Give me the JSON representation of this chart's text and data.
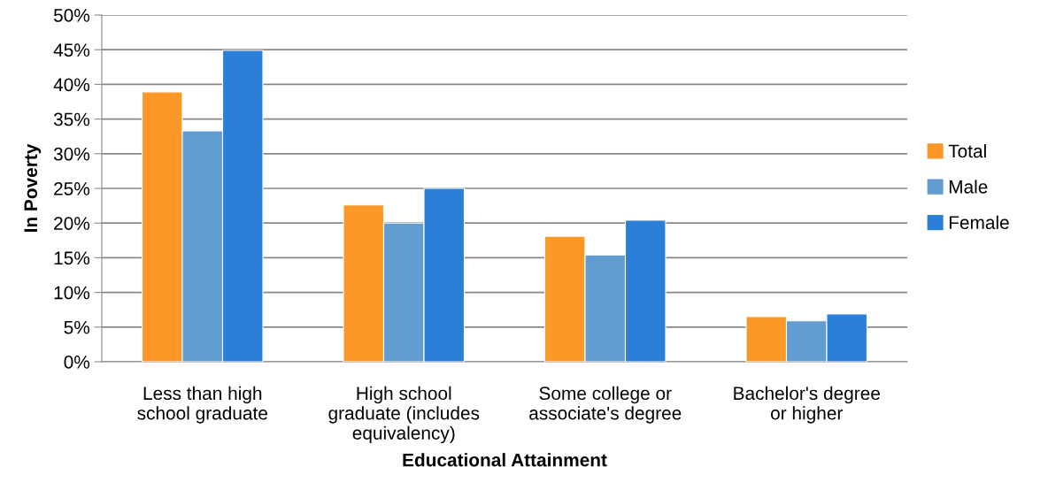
{
  "chart_data": {
    "type": "bar",
    "xlabel": "Educational Attainment",
    "ylabel": "In Poverty",
    "categories": [
      "Less than high\nschool graduate",
      "High school\ngraduate (includes\nequivalency)",
      "Some college or\nassociate's degree",
      "Bachelor's degree\nor higher"
    ],
    "series": [
      {
        "name": "Total",
        "color": "#fb9828",
        "values": [
          38.9,
          22.6,
          18.1,
          6.5
        ]
      },
      {
        "name": "Male",
        "color": "#629dd1",
        "values": [
          33.3,
          20.0,
          15.4,
          5.9
        ]
      },
      {
        "name": "Female",
        "color": "#2b7fd6",
        "values": [
          44.9,
          25.0,
          20.4,
          6.9
        ]
      }
    ],
    "ylim": [
      0,
      50
    ],
    "yticks": [
      {
        "value": 0,
        "label": "0%"
      },
      {
        "value": 5,
        "label": "5%"
      },
      {
        "value": 10,
        "label": "10%"
      },
      {
        "value": 15,
        "label": "15%"
      },
      {
        "value": 20,
        "label": "20%"
      },
      {
        "value": 25,
        "label": "25%"
      },
      {
        "value": 30,
        "label": "30%"
      },
      {
        "value": 35,
        "label": "35%"
      },
      {
        "value": 40,
        "label": "40%"
      },
      {
        "value": 45,
        "label": "45%"
      },
      {
        "value": 50,
        "label": "50%"
      }
    ],
    "grid": "y",
    "legend": "right"
  }
}
